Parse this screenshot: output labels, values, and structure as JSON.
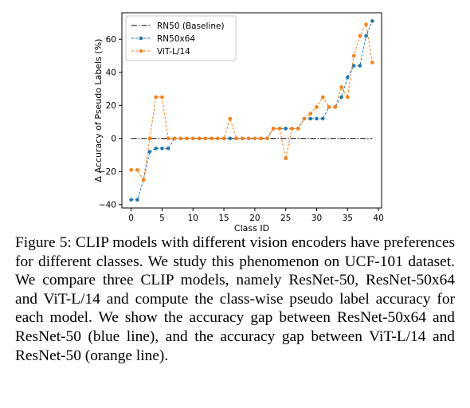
{
  "caption": "Figure 5: CLIP models with different vision encoders have preferences for different classes. We study this phenomenon on UCF-101 dataset. We compare three CLIP models, namely ResNet-50, ResNet-50x64 and ViT-L/14 and compute the class-wise pseudo label accuracy for each model. We show the accuracy gap between ResNet-50x64 and ResNet-50 (blue line), and the accuracy gap between ViT-L/14 and ResNet-50 (orange line).",
  "chart_data": {
    "type": "line",
    "title": "",
    "xlabel": "Class ID",
    "ylabel": "Δ Accuracy of Pseudo Labels (%)",
    "xlim": [
      -1.5,
      40.5
    ],
    "ylim": [
      -42,
      76
    ],
    "xticks": [
      0,
      5,
      10,
      15,
      20,
      25,
      30,
      35,
      40
    ],
    "yticks": [
      -40,
      -20,
      0,
      20,
      40,
      60
    ],
    "grid": false,
    "legend_position": "top-left",
    "x": [
      0,
      1,
      2,
      3,
      4,
      5,
      6,
      7,
      8,
      9,
      10,
      11,
      12,
      13,
      14,
      15,
      16,
      17,
      18,
      19,
      20,
      21,
      22,
      23,
      24,
      25,
      26,
      27,
      28,
      29,
      30,
      31,
      32,
      33,
      34,
      35,
      36,
      37,
      38,
      39
    ],
    "series": [
      {
        "name": "RN50 (Baseline)",
        "color": "#000000",
        "style": "dashdot",
        "marker": "none",
        "x": [
          0,
          39
        ],
        "values": [
          0,
          0
        ]
      },
      {
        "name": "RN50x64",
        "color": "#1f77b4",
        "style": "dashed",
        "marker": "circle",
        "values": [
          -37,
          -37,
          -25,
          -8,
          -6,
          -6,
          -6,
          0,
          0,
          0,
          0,
          0,
          0,
          0,
          0,
          0,
          0,
          0,
          0,
          0,
          0,
          0,
          0,
          6,
          6,
          6,
          6,
          6,
          12,
          12,
          12,
          12,
          19,
          19,
          25,
          37,
          44,
          44,
          62,
          71
        ]
      },
      {
        "name": "ViT-L/14",
        "color": "#ff7f0e",
        "style": "dashed",
        "marker": "circle",
        "values": [
          -19,
          -19,
          -25,
          0,
          25,
          25,
          0,
          0,
          0,
          0,
          0,
          0,
          0,
          0,
          0,
          0,
          12,
          0,
          0,
          0,
          0,
          0,
          0,
          6,
          6,
          -12,
          6,
          6,
          12,
          15,
          19,
          25,
          19,
          19,
          31,
          25,
          50,
          62,
          69,
          46
        ]
      }
    ]
  }
}
